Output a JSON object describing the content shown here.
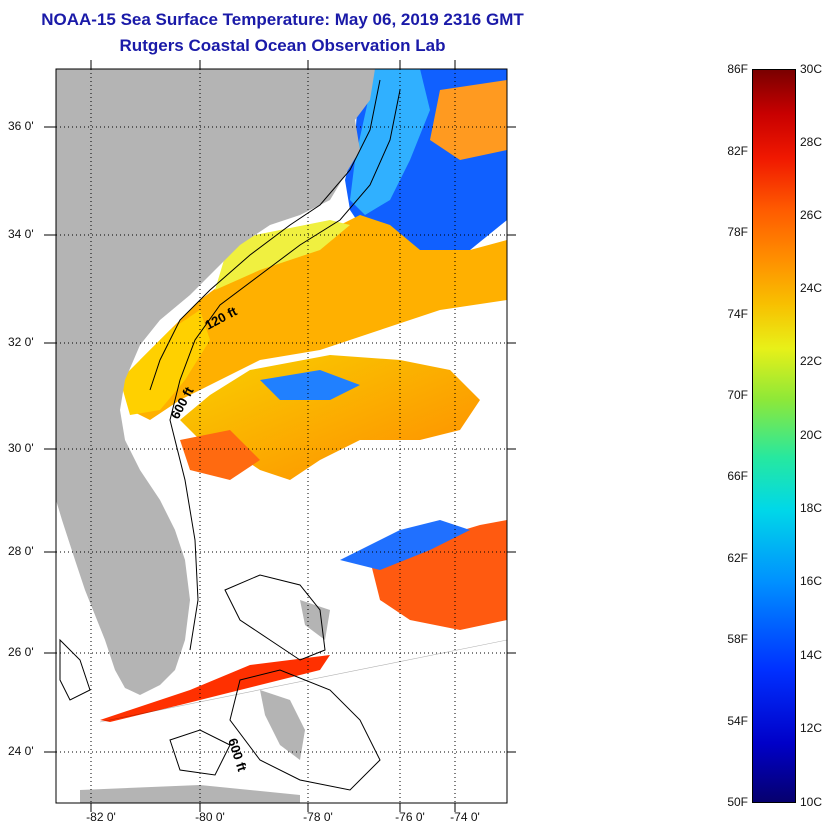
{
  "title": {
    "line1": "NOAA-15 Sea Surface Temperature:  May 06, 2019 2316 GMT",
    "line2": "Rutgers Coastal Ocean Observation Lab"
  },
  "map": {
    "lat_labels": [
      "36 0'",
      "34 0'",
      "32 0'",
      "30 0'",
      "28 0'",
      "26 0'",
      "24 0'"
    ],
    "lon_labels": [
      "-82 0'",
      "-80 0'",
      "-78 0'",
      "-76 0'",
      "-74 0'"
    ],
    "contour_labels": [
      "120 ft",
      "600 ft",
      "600 ft"
    ],
    "colors": {
      "land": "#b4b4b4",
      "cloud": "#ffffff",
      "grid": "#000000"
    }
  },
  "colorbar": {
    "fahrenheit_labels": [
      "86F",
      "82F",
      "78F",
      "74F",
      "70F",
      "66F",
      "62F",
      "58F",
      "54F",
      "50F"
    ],
    "celsius_labels": [
      "30C",
      "28C",
      "26C",
      "24C",
      "22C",
      "20C",
      "18C",
      "16C",
      "14C",
      "12C",
      "10C"
    ],
    "range_f": [
      50,
      86
    ],
    "range_c": [
      10,
      30
    ]
  }
}
